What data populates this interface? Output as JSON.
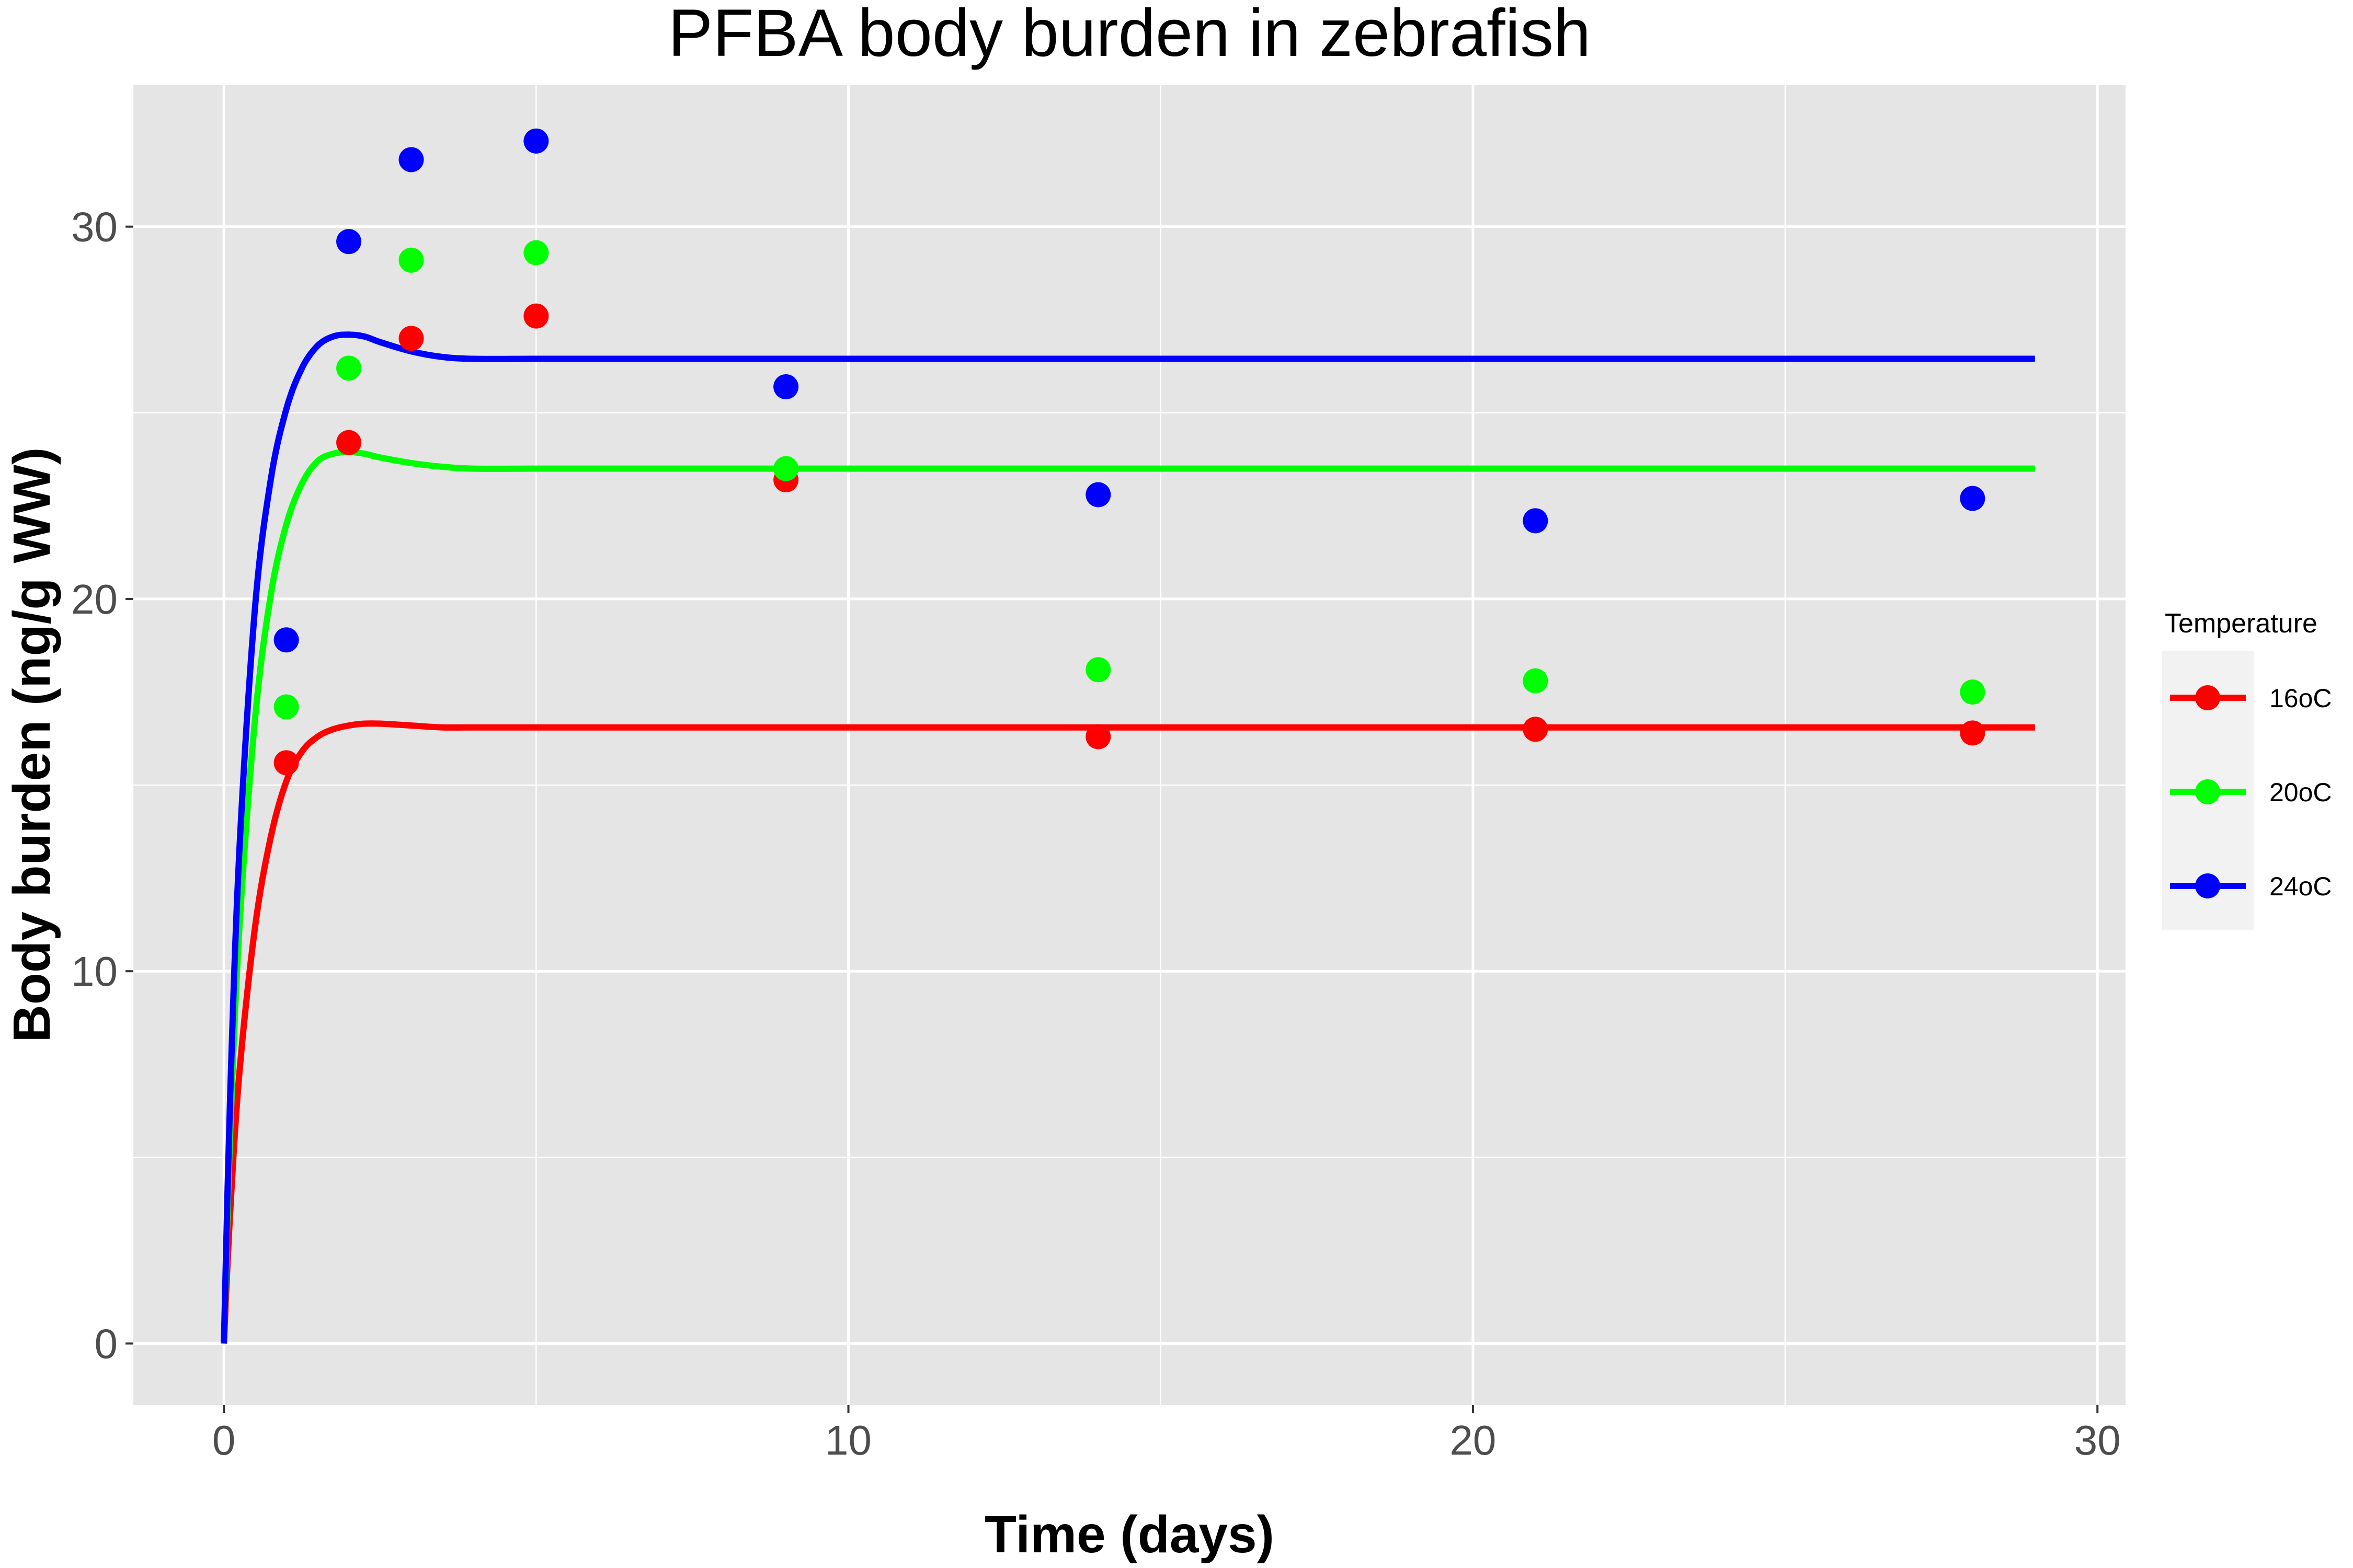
{
  "chart_data": {
    "type": "scatter",
    "title": "PFBA body burden in zebrafish",
    "xlabel": "Time (days)",
    "ylabel": "Body burden (ng/g WW)",
    "xlim": [
      -1.45,
      30.45
    ],
    "ylim": [
      -1.65,
      33.8
    ],
    "x_ticks": [
      0,
      10,
      20,
      30
    ],
    "y_ticks": [
      0,
      10,
      20,
      30
    ],
    "grid": true,
    "legend": {
      "title": "Temperature",
      "position": "right"
    },
    "series": [
      {
        "name": "16oC",
        "color": "#ff0000",
        "points": {
          "x": [
            1,
            2,
            3,
            5,
            9,
            14,
            21,
            28
          ],
          "y": [
            15.6,
            24.2,
            27.0,
            27.6,
            23.2,
            16.3,
            16.5,
            16.4
          ]
        },
        "fit": {
          "x": [
            0,
            0.1,
            0.25,
            0.5,
            0.75,
            1,
            1.25,
            1.5,
            1.75,
            2,
            2.25,
            2.5,
            3,
            3.5,
            4,
            5,
            6,
            8,
            10,
            15,
            20,
            25,
            29
          ],
          "y": [
            0,
            3.5,
            7.3,
            11.2,
            13.6,
            15.1,
            15.9,
            16.3,
            16.5,
            16.6,
            16.65,
            16.65,
            16.6,
            16.55,
            16.55,
            16.55,
            16.55,
            16.55,
            16.55,
            16.55,
            16.55,
            16.55,
            16.55
          ]
        }
      },
      {
        "name": "20oC",
        "color": "#00ff00",
        "points": {
          "x": [
            1,
            2,
            3,
            5,
            9,
            14,
            21,
            28
          ],
          "y": [
            17.1,
            26.2,
            29.1,
            29.3,
            23.5,
            18.1,
            17.8,
            17.5
          ]
        },
        "fit": {
          "x": [
            0,
            0.1,
            0.25,
            0.5,
            0.75,
            1,
            1.25,
            1.5,
            1.75,
            2,
            2.25,
            2.5,
            3,
            3.5,
            4,
            5,
            6,
            8,
            10,
            15,
            20,
            25,
            29
          ],
          "y": [
            0,
            5.6,
            11.2,
            16.8,
            20.1,
            22.0,
            23.1,
            23.7,
            23.9,
            23.95,
            23.9,
            23.8,
            23.65,
            23.55,
            23.5,
            23.5,
            23.5,
            23.5,
            23.5,
            23.5,
            23.5,
            23.5,
            23.5
          ]
        }
      },
      {
        "name": "24oC",
        "color": "#0000ff",
        "points": {
          "x": [
            1,
            2,
            3,
            5,
            9,
            14,
            21,
            28
          ],
          "y": [
            18.9,
            29.6,
            31.8,
            32.3,
            25.7,
            22.8,
            22.1,
            22.7
          ]
        },
        "fit": {
          "x": [
            0,
            0.1,
            0.25,
            0.5,
            0.75,
            1,
            1.25,
            1.5,
            1.75,
            2,
            2.25,
            2.5,
            3,
            3.5,
            4,
            5,
            6,
            8,
            10,
            15,
            20,
            25,
            29
          ],
          "y": [
            0,
            6.6,
            13.3,
            19.8,
            23.2,
            25.1,
            26.2,
            26.8,
            27.05,
            27.1,
            27.05,
            26.9,
            26.65,
            26.5,
            26.45,
            26.45,
            26.45,
            26.45,
            26.45,
            26.45,
            26.45,
            26.45,
            26.45
          ]
        }
      }
    ],
    "colors": {
      "panel": "#e5e5e5",
      "grid": "#ffffff",
      "tick_text": "#4d4d4d",
      "legend_key_bg": "#f2f2f2"
    }
  }
}
